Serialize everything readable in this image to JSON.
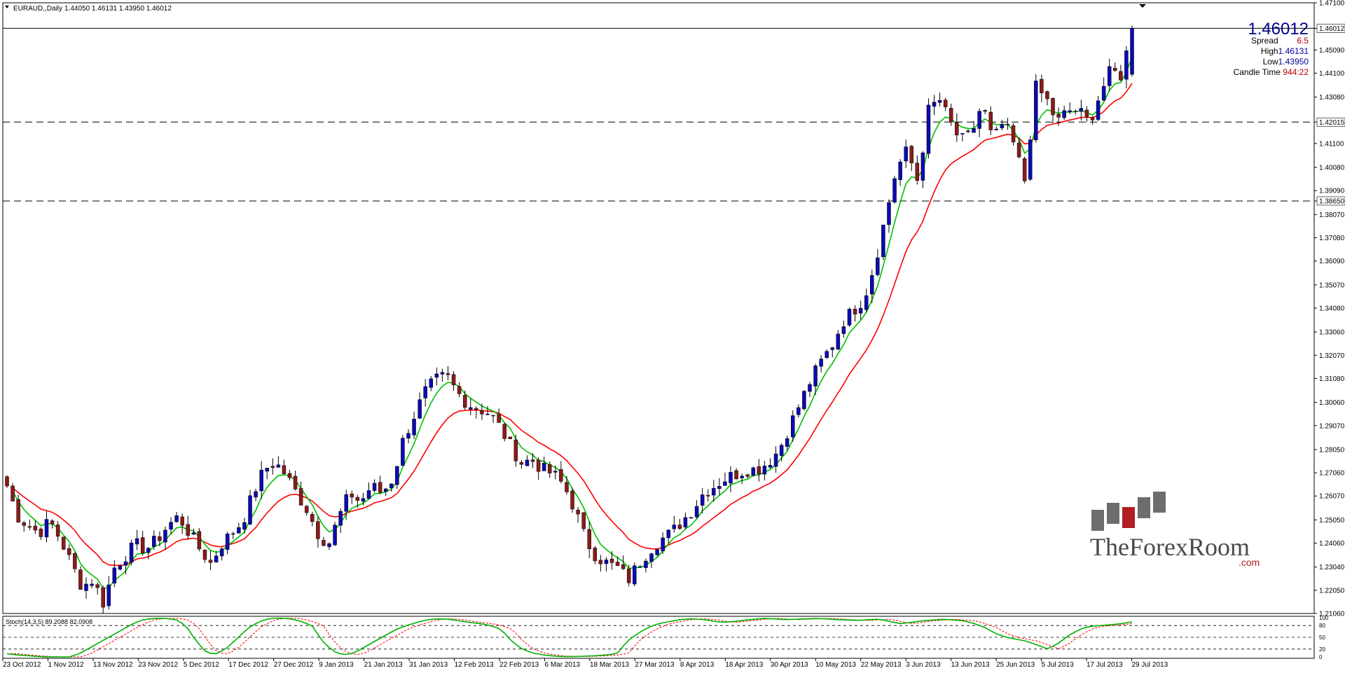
{
  "header": {
    "symbol": "EURAUD,,Daily",
    "ohlc": "1.44050 1.46131 1.43950 1.46012"
  },
  "info_panel": {
    "price": "1.46012",
    "spread_label": "Spread",
    "spread_value": "6.5",
    "high_label": "High",
    "high_value": "1.46131",
    "low_label": "Low",
    "low_value": "1.43950",
    "candle_time_label": "Candle Time",
    "candle_time_value": "944:22"
  },
  "stoch": {
    "label": "Stoch(14,3,5) 89.2088 82.0908",
    "ticks": [
      "100",
      "80",
      "50",
      "20",
      "0"
    ]
  },
  "logo": {
    "text": "TheForexRoom",
    "suffix": ".com"
  },
  "colors": {
    "bull": "#0a0ab4",
    "bear": "#8b1a1a",
    "fast_ma": "#00c000",
    "slow_ma": "#ff0000",
    "stoch_main": "#00b000",
    "stoch_signal": "#ff0000",
    "price_text": "#00008b",
    "value_red": "#b00000",
    "value_blue": "#0000a0"
  },
  "chart_data": {
    "type": "candlestick",
    "symbol": "EURAUD",
    "timeframe": "Daily",
    "y_ticks": [
      "1.47100",
      "1.46012",
      "1.45090",
      "1.44100",
      "1.43080",
      "1.42015",
      "1.41100",
      "1.40080",
      "1.39090",
      "1.38650",
      "1.38070",
      "1.37080",
      "1.36090",
      "1.35070",
      "1.34080",
      "1.33060",
      "1.32070",
      "1.31080",
      "1.30060",
      "1.29070",
      "1.28050",
      "1.27060",
      "1.26070",
      "1.25050",
      "1.24060",
      "1.23040",
      "1.22050",
      "1.21060"
    ],
    "x_ticks": [
      "23 Oct 2012",
      "1 Nov 2012",
      "13 Nov 2012",
      "23 Nov 2012",
      "5 Dec 2012",
      "17 Dec 2012",
      "27 Dec 2012",
      "9 Jan 2013",
      "21 Jan 2013",
      "31 Jan 2013",
      "12 Feb 2013",
      "22 Feb 2013",
      "6 Mar 2013",
      "18 Mar 2013",
      "27 Mar 2013",
      "8 Apr 2013",
      "18 Apr 2013",
      "30 Apr 2013",
      "10 May 2013",
      "22 May 2013",
      "3 Jun 2013",
      "13 Jun 2013",
      "25 Jun 2013",
      "5 Jul 2013",
      "17 Jul 2013",
      "29 Jul 2013"
    ],
    "ylim": [
      1.2106,
      1.471
    ],
    "horizontal_levels": [
      {
        "value": 1.46012,
        "style": "solid"
      },
      {
        "value": 1.42015,
        "style": "dashed"
      },
      {
        "value": 1.3865,
        "style": "dashed"
      }
    ],
    "close_anchors": [
      1.265,
      1.252,
      1.248,
      1.245,
      1.25,
      1.242,
      1.232,
      1.222,
      1.225,
      1.215,
      1.23,
      1.235,
      1.24,
      1.238,
      1.242,
      1.248,
      1.252,
      1.245,
      1.238,
      1.232,
      1.24,
      1.245,
      1.25,
      1.262,
      1.272,
      1.275,
      1.27,
      1.262,
      1.255,
      1.245,
      1.24,
      1.252,
      1.262,
      1.258,
      1.265,
      1.262,
      1.268,
      1.285,
      1.295,
      1.305,
      1.31,
      1.312,
      1.305,
      1.3,
      1.298,
      1.296,
      1.29,
      1.282,
      1.275,
      1.276,
      1.272,
      1.27,
      1.265,
      1.255,
      1.242,
      1.235,
      1.232,
      1.23,
      1.225,
      1.232,
      1.238,
      1.242,
      1.245,
      1.25,
      1.255,
      1.262,
      1.265,
      1.268,
      1.27,
      1.272,
      1.272,
      1.275,
      1.28,
      1.29,
      1.3,
      1.31,
      1.318,
      1.325,
      1.335,
      1.34,
      1.345,
      1.36,
      1.38,
      1.4,
      1.408,
      1.395,
      1.425,
      1.43,
      1.42,
      1.412,
      1.415,
      1.428,
      1.412,
      1.42,
      1.41,
      1.395,
      1.435,
      1.43,
      1.42,
      1.425,
      1.425,
      1.42,
      1.432,
      1.442,
      1.44,
      1.4601
    ],
    "fast_ma": {
      "name": "",
      "period_note": ""
    },
    "slow_ma": {
      "name": "",
      "period_note": ""
    },
    "stoch_main_anchors": [
      8,
      5,
      3,
      1,
      0,
      0,
      0,
      10,
      25,
      40,
      55,
      70,
      85,
      95,
      98,
      98,
      96,
      80,
      40,
      10,
      8,
      25,
      50,
      75,
      90,
      98,
      99,
      97,
      90,
      80,
      40,
      15,
      5,
      10,
      25,
      40,
      55,
      70,
      80,
      88,
      95,
      97,
      96,
      92,
      88,
      85,
      80,
      70,
      40,
      20,
      10,
      5,
      2,
      1,
      1,
      2,
      3,
      5,
      8,
      40,
      60,
      75,
      85,
      90,
      95,
      97,
      96,
      92,
      88,
      90,
      93,
      96,
      98,
      97,
      95,
      96,
      97,
      98,
      97,
      95,
      94,
      93,
      95,
      96,
      90,
      85,
      88,
      92,
      94,
      96,
      94,
      92,
      85,
      75,
      60,
      50,
      45,
      40,
      30,
      20,
      35,
      55,
      70,
      78,
      80,
      82,
      85,
      89.2
    ],
    "stoch_signal_offset": -4
  }
}
